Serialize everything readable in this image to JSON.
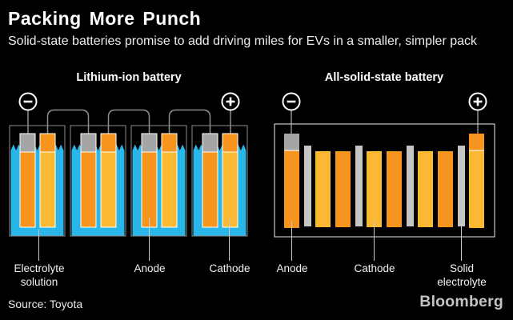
{
  "header": {
    "title": "Packing More Punch",
    "subtitle": "Solid-state batteries promise to add driving miles for EVs in a smaller, simpler pack"
  },
  "left_battery": {
    "heading": "Lithium-ion battery",
    "cells": 4,
    "terminals": {
      "negative": "minus-circle",
      "positive": "plus-circle"
    },
    "labels": {
      "electrolyte": "Electrolyte solution",
      "anode": "Anode",
      "cathode": "Cathode"
    }
  },
  "right_battery": {
    "heading": "All-solid-state battery",
    "bars": [
      "anode-terminal",
      "electrolyte",
      "cathode",
      "anode",
      "electrolyte",
      "cathode",
      "anode",
      "electrolyte",
      "cathode",
      "anode",
      "electrolyte",
      "cathode-terminal"
    ],
    "terminals": {
      "negative": "minus-circle",
      "positive": "plus-circle"
    },
    "labels": {
      "anode": "Anode",
      "cathode": "Cathode",
      "electrolyte": "Solid electrolyte"
    }
  },
  "footer": {
    "source": "Source: Toyota",
    "brand": "Bloomberg"
  },
  "colors": {
    "background": "#000000",
    "electrolyte_cyan": "#29B6E8",
    "anode_orange": "#F7941E",
    "cathode_yellow": "#FBB832",
    "terminal_gray": "#A5A5A5",
    "separator_gray": "#C6C6C6",
    "wire_gray": "#8E8E8E",
    "outline_gray": "#C9C9C9",
    "title_white": "#FFFFFF",
    "label_white": "#F2F2F2",
    "brand_gray": "#C3C3C3"
  }
}
